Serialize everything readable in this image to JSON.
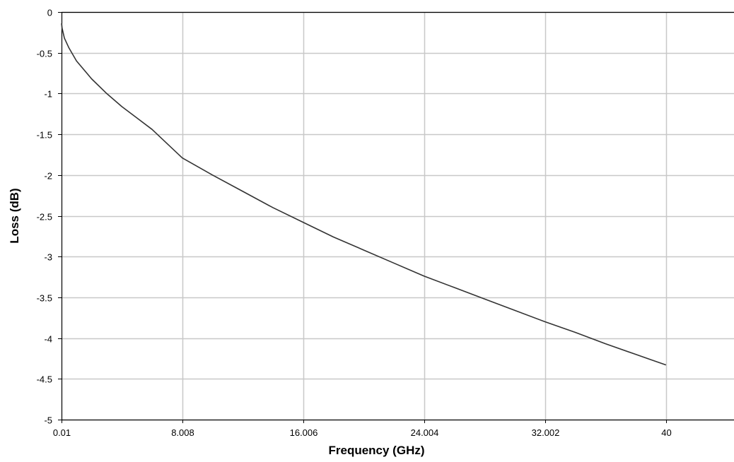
{
  "chart_data": {
    "type": "line",
    "title": "",
    "xlabel": "Frequency (GHz)",
    "ylabel": "Loss (dB)",
    "xlim": [
      0.01,
      44.5
    ],
    "ylim": [
      -5,
      0
    ],
    "x_ticks": [
      0.01,
      8.008,
      16.006,
      24.004,
      32.002,
      40
    ],
    "x_tick_labels": [
      "0.01",
      "8.008",
      "16.006",
      "24.004",
      "32.002",
      "40"
    ],
    "y_ticks": [
      0,
      -0.5,
      -1,
      -1.5,
      -2,
      -2.5,
      -3,
      -3.5,
      -4,
      -4.5,
      -5
    ],
    "y_tick_labels": [
      "0",
      "-0.5",
      "-1",
      "-1.5",
      "-2",
      "-2.5",
      "-3",
      "-3.5",
      "-4",
      "-4.5",
      "-5"
    ],
    "grid": true,
    "legend": "none",
    "series": [
      {
        "color": "#333333",
        "x": [
          0.01,
          0.05,
          0.2,
          0.5,
          1,
          2,
          3,
          4,
          5,
          6,
          8,
          10,
          12,
          14,
          16,
          18,
          20,
          22,
          24,
          26,
          28,
          30,
          32,
          34,
          36,
          38,
          40
        ],
        "y": [
          -0.14,
          -0.2,
          -0.32,
          -0.44,
          -0.6,
          -0.82,
          -1.0,
          -1.16,
          -1.3,
          -1.44,
          -1.79,
          -2.0,
          -2.2,
          -2.4,
          -2.58,
          -2.76,
          -2.92,
          -3.08,
          -3.24,
          -3.38,
          -3.52,
          -3.66,
          -3.8,
          -3.93,
          -4.07,
          -4.2,
          -4.33
        ]
      }
    ]
  }
}
